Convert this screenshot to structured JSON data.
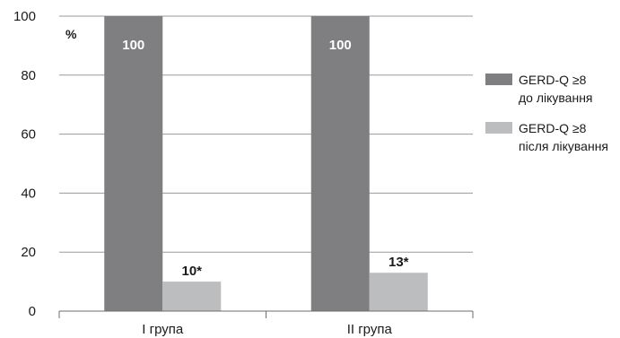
{
  "chart_data": {
    "type": "bar",
    "categories": [
      "І група",
      "ІІ група"
    ],
    "series": [
      {
        "name_line1": "GERD-Q ≥8",
        "name_line2": "до лікування",
        "values": [
          100,
          100
        ],
        "labels": [
          "100",
          "100"
        ],
        "color": "#7f7f81"
      },
      {
        "name_line1": "GERD-Q ≥8",
        "name_line2": "після лікування",
        "values": [
          10,
          13
        ],
        "labels": [
          "10*",
          "13*"
        ],
        "color": "#bcbdbf"
      }
    ],
    "ylabel": "%",
    "ylim": [
      0,
      100
    ],
    "yticks": [
      0,
      20,
      40,
      60,
      80,
      100
    ],
    "grid": true,
    "legend_position": "right"
  }
}
